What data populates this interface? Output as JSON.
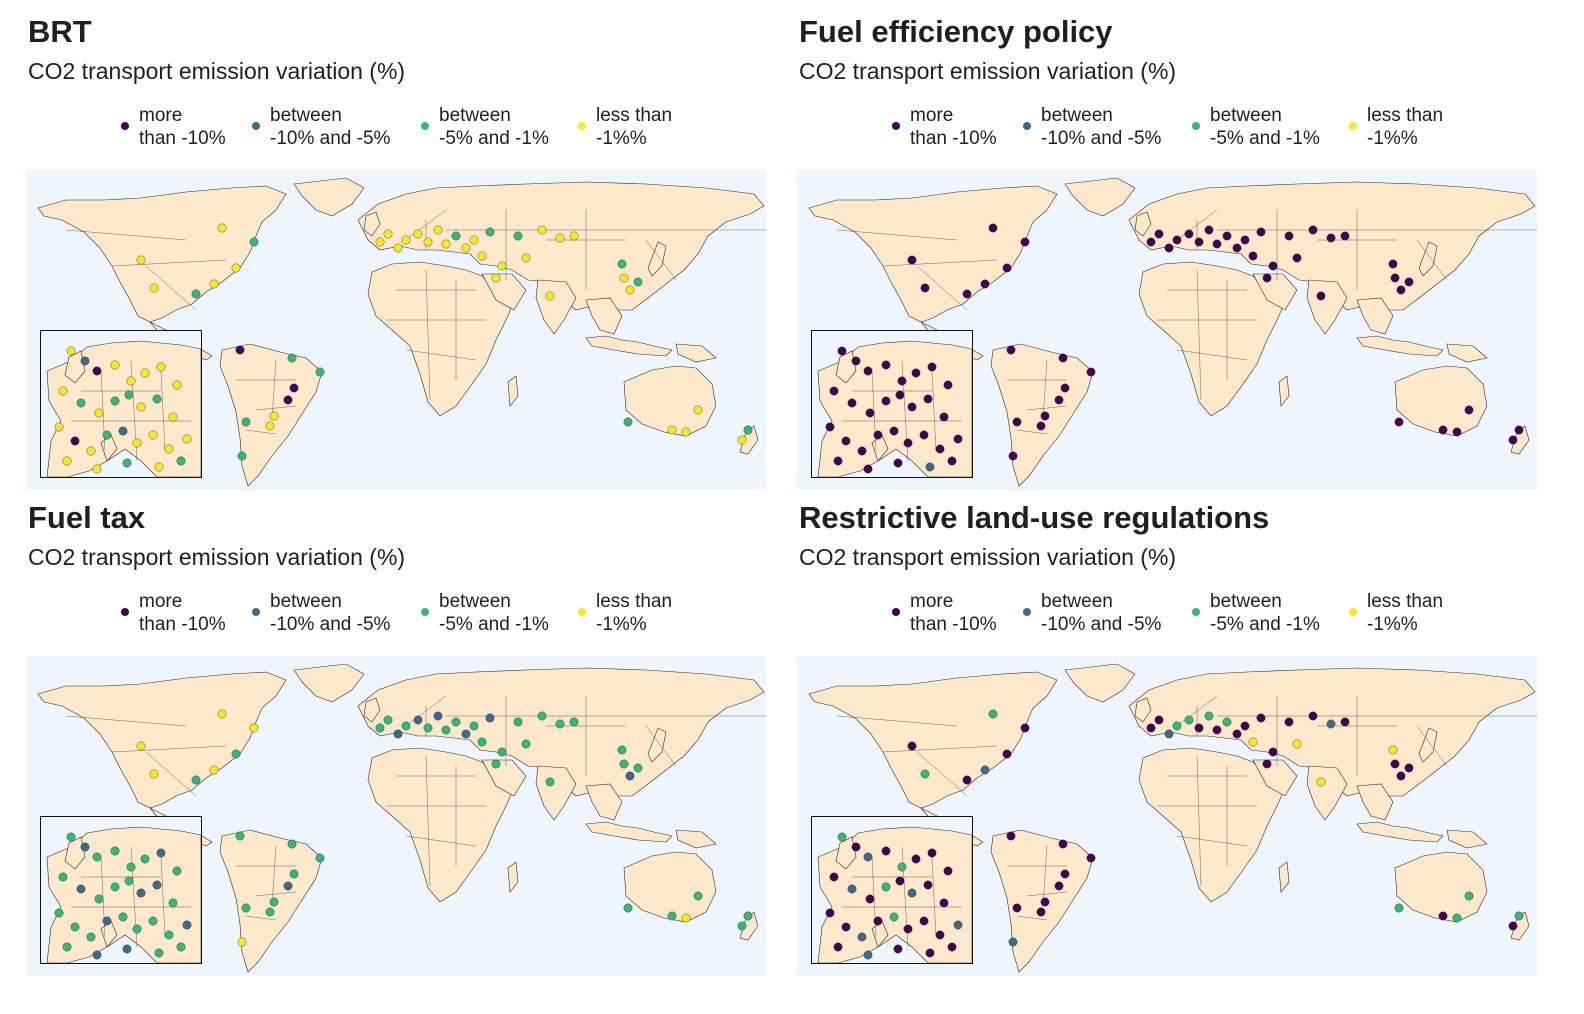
{
  "legend": [
    {
      "label": "more\nthan -10%",
      "color": "#440154"
    },
    {
      "label": "between\n-10% and -5%",
      "color": "#3b6a8c"
    },
    {
      "label": "between\n-5% and -1%",
      "color": "#35b779"
    },
    {
      "label": "less than\n-1%%",
      "color": "#fde725"
    }
  ],
  "panels": [
    {
      "title": "BRT",
      "subtitle": "CO2 transport emission variation (%)",
      "scheme": "yellow-europe"
    },
    {
      "title": "Fuel efficiency policy",
      "subtitle": "CO2 transport emission variation (%)",
      "scheme": "purple-all"
    },
    {
      "title": "Fuel tax",
      "subtitle": "CO2 transport emission variation (%)",
      "scheme": "green-mixed"
    },
    {
      "title": "Restrictive land-use regulations",
      "subtitle": "CO2 transport emission variation (%)",
      "scheme": "mixed"
    }
  ]
}
